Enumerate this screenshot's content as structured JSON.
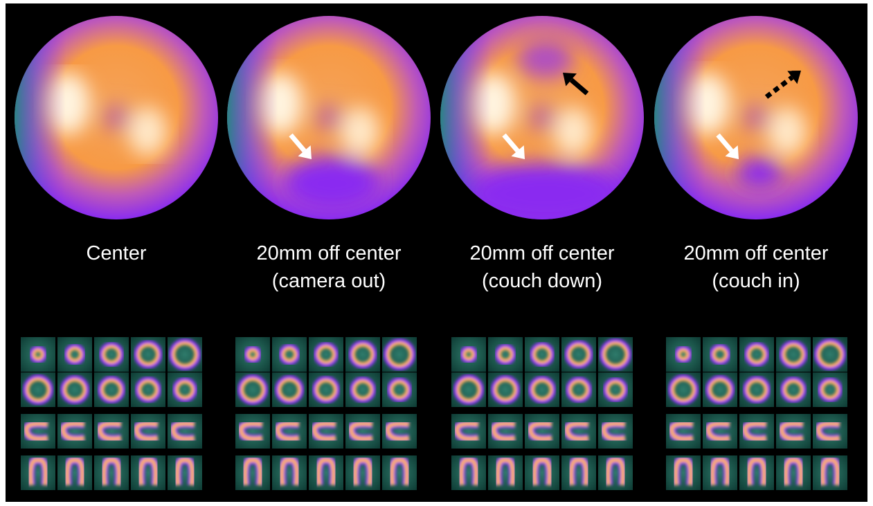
{
  "panels": [
    {
      "label": [
        "Center"
      ]
    },
    {
      "label": [
        "20mm off center",
        "(camera out)"
      ]
    },
    {
      "label": [
        "20mm off center",
        "(couch down)"
      ]
    },
    {
      "label": [
        "20mm off center",
        "(couch in)"
      ]
    }
  ]
}
